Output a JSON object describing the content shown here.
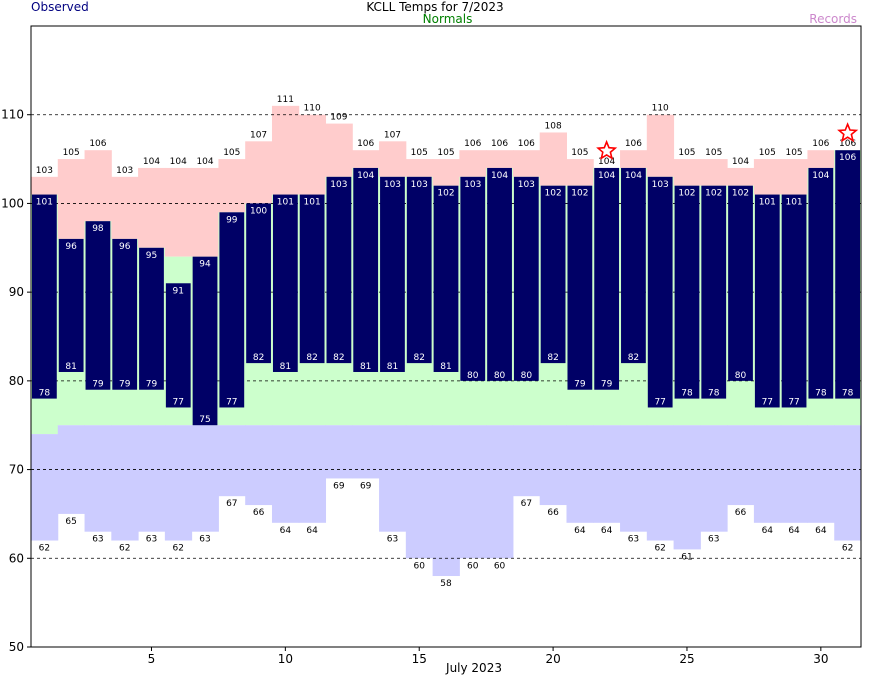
{
  "title": "KCLL Temps for 7/2023",
  "legend": {
    "observed": "Observed",
    "normals": "Normals",
    "records": "Records"
  },
  "colors": {
    "observed": "#000066",
    "record_high": "#ffcccc",
    "record_low": "#ccccff",
    "normal": "#ccffcc",
    "star": "#ff0000",
    "grid": "#000000"
  },
  "chart_data": {
    "type": "bar",
    "xlabel": "July 2023",
    "ylabel": "",
    "ylim": [
      50,
      120
    ],
    "y_ticks": [
      50,
      60,
      70,
      80,
      90,
      100,
      110
    ],
    "x_ticks": [
      5,
      10,
      15,
      20,
      25,
      30
    ],
    "gridlines": [
      60,
      70,
      80,
      90,
      100,
      110
    ],
    "days": [
      1,
      2,
      3,
      4,
      5,
      6,
      7,
      8,
      9,
      10,
      11,
      12,
      13,
      14,
      15,
      16,
      17,
      18,
      19,
      20,
      21,
      22,
      23,
      24,
      25,
      26,
      27,
      28,
      29,
      30,
      31
    ],
    "record_high": [
      103,
      105,
      106,
      103,
      104,
      104,
      104,
      105,
      107,
      111,
      110,
      109,
      106,
      107,
      105,
      105,
      106,
      106,
      106,
      108,
      105,
      104,
      106,
      110,
      105,
      105,
      104,
      105,
      105,
      106,
      106
    ],
    "normal_high": [
      101,
      96,
      98,
      96,
      95,
      94,
      94,
      99,
      100,
      101,
      101,
      103,
      104,
      103,
      103,
      102,
      103,
      104,
      103,
      102,
      102,
      104,
      104,
      103,
      102,
      102,
      102,
      101,
      101,
      104,
      106
    ],
    "normal_low": [
      74,
      75,
      75,
      75,
      75,
      75,
      75,
      75,
      75,
      75,
      75,
      75,
      75,
      75,
      75,
      75,
      75,
      75,
      75,
      75,
      75,
      75,
      75,
      75,
      75,
      75,
      75,
      75,
      75,
      75,
      75
    ],
    "record_low": [
      62,
      65,
      63,
      62,
      63,
      62,
      63,
      67,
      66,
      64,
      64,
      69,
      69,
      63,
      60,
      58,
      60,
      60,
      67,
      66,
      64,
      64,
      63,
      62,
      61,
      63,
      66,
      64,
      64,
      64,
      62
    ],
    "observed_high": [
      101,
      96,
      98,
      96,
      95,
      91,
      94,
      99,
      100,
      101,
      101,
      103,
      104,
      103,
      103,
      102,
      103,
      104,
      103,
      102,
      102,
      104,
      104,
      103,
      102,
      102,
      102,
      101,
      101,
      104,
      106
    ],
    "observed_low": [
      78,
      81,
      79,
      79,
      79,
      77,
      75,
      77,
      82,
      81,
      82,
      82,
      81,
      81,
      82,
      81,
      80,
      80,
      80,
      82,
      79,
      79,
      82,
      77,
      78,
      78,
      80,
      77,
      77,
      78,
      78
    ],
    "record_markers": [
      22,
      31
    ]
  }
}
